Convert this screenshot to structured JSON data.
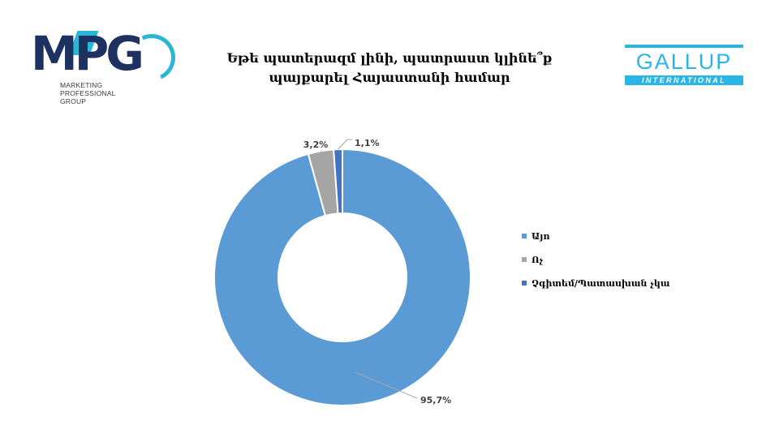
{
  "logos": {
    "mpg": {
      "letters": "MPG",
      "subtitle_lines": [
        "MARKETING",
        "PROFESSIONAL",
        "GROUP"
      ],
      "colors": {
        "primary": "#1d3260",
        "accent": "#2bb6d8"
      }
    },
    "gallup": {
      "word": "GALLUP",
      "band": "INTERNATIONAL",
      "color": "#29b6e6"
    }
  },
  "chart_data": {
    "type": "pie",
    "variant": "donut",
    "title_lines": [
      "Եթե պատերազմ լինի, պատրաստ կլինե՞ք",
      "պայքարել Հայաստանի համար"
    ],
    "categories": [
      "Այո",
      "Ոչ",
      "Չգիտեմ/Պատասխան չկա"
    ],
    "values": [
      95.7,
      3.2,
      1.1
    ],
    "value_labels": [
      "95,7%",
      "3,2%",
      "1,1%"
    ],
    "colors": [
      "#5b9bd5",
      "#a5a5a5",
      "#4472c4"
    ],
    "legend": "right"
  }
}
